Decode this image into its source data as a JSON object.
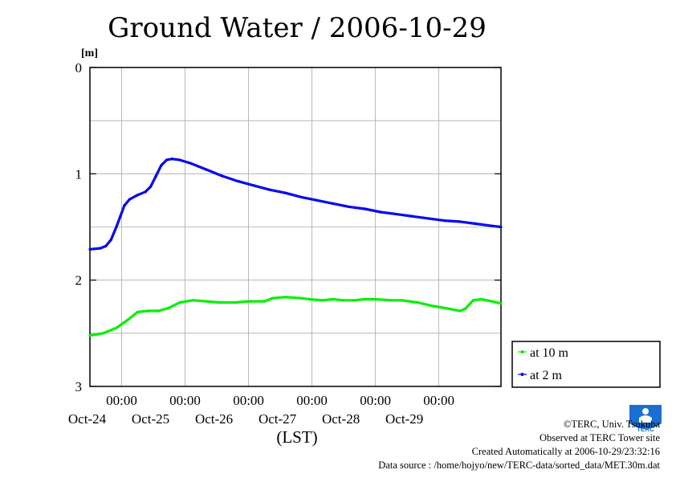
{
  "chart_data": {
    "type": "line",
    "title": "Ground Water / 2006-10-29",
    "ylabel": "[m]",
    "xlabel": "(LST)",
    "ylim": [
      0,
      3
    ],
    "y_inverted": true,
    "yticks": [
      "0",
      "1",
      "2",
      "3"
    ],
    "grid": true,
    "legend_position": "right",
    "time_range": [
      "2006-10-23 12:00",
      "2006-10-29 23:30"
    ],
    "x_ticks": [
      {
        "time": "2006-10-24 00:00",
        "label_top": "00:00",
        "label_bottom": "Oct-24"
      },
      {
        "time": "2006-10-25 00:00",
        "label_top": "00:00",
        "label_bottom": "Oct-25"
      },
      {
        "time": "2006-10-26 00:00",
        "label_top": "00:00",
        "label_bottom": "Oct-26"
      },
      {
        "time": "2006-10-27 00:00",
        "label_top": "00:00",
        "label_bottom": "Oct-27"
      },
      {
        "time": "2006-10-28 00:00",
        "label_top": "00:00",
        "label_bottom": "Oct-28"
      },
      {
        "time": "2006-10-29 00:00",
        "label_top": "00:00",
        "label_bottom": "Oct-29"
      }
    ],
    "series": [
      {
        "name": "at 10 m",
        "color": "#00ee00",
        "points": [
          [
            "2006-10-23 12:00",
            2.52
          ],
          [
            "2006-10-23 17:00",
            2.5
          ],
          [
            "2006-10-23 22:00",
            2.45
          ],
          [
            "2006-10-24 02:00",
            2.38
          ],
          [
            "2006-10-24 06:00",
            2.3
          ],
          [
            "2006-10-24 10:00",
            2.29
          ],
          [
            "2006-10-24 14:00",
            2.29
          ],
          [
            "2006-10-24 18:00",
            2.26
          ],
          [
            "2006-10-24 22:00",
            2.21
          ],
          [
            "2006-10-25 03:00",
            2.19
          ],
          [
            "2006-10-25 08:00",
            2.2
          ],
          [
            "2006-10-25 13:00",
            2.21
          ],
          [
            "2006-10-25 19:00",
            2.21
          ],
          [
            "2006-10-26 00:00",
            2.2
          ],
          [
            "2006-10-26 06:00",
            2.2
          ],
          [
            "2006-10-26 09:00",
            2.17
          ],
          [
            "2006-10-26 14:00",
            2.16
          ],
          [
            "2006-10-26 20:00",
            2.17
          ],
          [
            "2006-10-26 23:00",
            2.18
          ],
          [
            "2006-10-27 04:00",
            2.19
          ],
          [
            "2006-10-27 08:00",
            2.18
          ],
          [
            "2006-10-27 12:00",
            2.19
          ],
          [
            "2006-10-27 16:00",
            2.19
          ],
          [
            "2006-10-27 20:00",
            2.18
          ],
          [
            "2006-10-28 00:00",
            2.18
          ],
          [
            "2006-10-28 06:00",
            2.19
          ],
          [
            "2006-10-28 10:00",
            2.19
          ],
          [
            "2006-10-28 16:00",
            2.21
          ],
          [
            "2006-10-28 21:00",
            2.24
          ],
          [
            "2006-10-29 04:00",
            2.27
          ],
          [
            "2006-10-29 08:00",
            2.29
          ],
          [
            "2006-10-29 10:00",
            2.27
          ],
          [
            "2006-10-29 13:00",
            2.19
          ],
          [
            "2006-10-29 16:00",
            2.18
          ],
          [
            "2006-10-29 20:00",
            2.2
          ],
          [
            "2006-10-29 23:30",
            2.22
          ]
        ]
      },
      {
        "name": "at 2 m",
        "color": "#0000ee",
        "points": [
          [
            "2006-10-23 12:00",
            1.71
          ],
          [
            "2006-10-23 16:00",
            1.7
          ],
          [
            "2006-10-23 18:00",
            1.68
          ],
          [
            "2006-10-23 20:00",
            1.62
          ],
          [
            "2006-10-23 22:00",
            1.5
          ],
          [
            "2006-10-23 23:30",
            1.4
          ],
          [
            "2006-10-24 01:00",
            1.3
          ],
          [
            "2006-10-24 03:00",
            1.24
          ],
          [
            "2006-10-24 06:00",
            1.2
          ],
          [
            "2006-10-24 09:00",
            1.17
          ],
          [
            "2006-10-24 11:00",
            1.12
          ],
          [
            "2006-10-24 13:00",
            1.02
          ],
          [
            "2006-10-24 15:00",
            0.92
          ],
          [
            "2006-10-24 17:00",
            0.87
          ],
          [
            "2006-10-24 19:00",
            0.86
          ],
          [
            "2006-10-24 22:00",
            0.87
          ],
          [
            "2006-10-25 02:00",
            0.9
          ],
          [
            "2006-10-25 08:00",
            0.96
          ],
          [
            "2006-10-25 14:00",
            1.02
          ],
          [
            "2006-10-25 20:00",
            1.07
          ],
          [
            "2006-10-26 02:00",
            1.11
          ],
          [
            "2006-10-26 08:00",
            1.15
          ],
          [
            "2006-10-26 14:00",
            1.18
          ],
          [
            "2006-10-26 20:00",
            1.22
          ],
          [
            "2006-10-27 02:00",
            1.25
          ],
          [
            "2006-10-27 08:00",
            1.28
          ],
          [
            "2006-10-27 14:00",
            1.31
          ],
          [
            "2006-10-27 20:00",
            1.33
          ],
          [
            "2006-10-28 02:00",
            1.36
          ],
          [
            "2006-10-28 08:00",
            1.38
          ],
          [
            "2006-10-28 14:00",
            1.4
          ],
          [
            "2006-10-28 20:00",
            1.42
          ],
          [
            "2006-10-29 02:00",
            1.44
          ],
          [
            "2006-10-29 08:00",
            1.45
          ],
          [
            "2006-10-29 14:00",
            1.47
          ],
          [
            "2006-10-29 20:00",
            1.49
          ],
          [
            "2006-10-29 23:30",
            1.5
          ]
        ]
      }
    ]
  },
  "footer": {
    "credit": "©TERC, Univ. Tsukuba",
    "observed": "Observed at TERC Tower site",
    "created": "Created Automatically at 2006-10-29/23:32:16",
    "source": "Data source : /home/hojyo/new/TERC-data/sorted_data/MET.30m.dat"
  },
  "logo": {
    "text": "TERC",
    "color": "#1a6fd1",
    "icon": "terc-logo-icon"
  }
}
